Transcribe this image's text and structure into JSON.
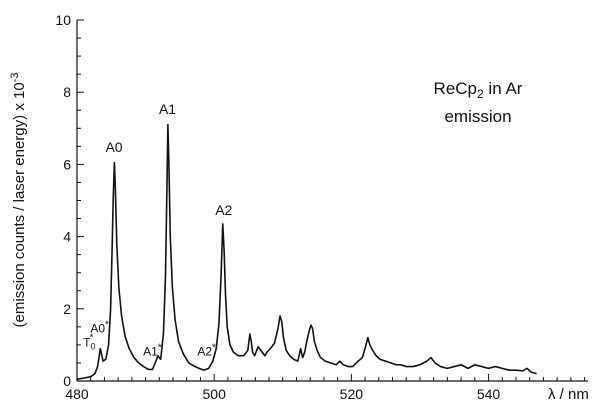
{
  "chart_data": {
    "type": "line",
    "title": "",
    "annotation": [
      "ReCp2 in Ar",
      "emission"
    ],
    "xlabel": "λ / nm",
    "ylabel": "(emission counts / laser energy) x 10",
    "ylabel_exponent": "-3",
    "xlim": [
      480,
      548
    ],
    "ylim": [
      0,
      10
    ],
    "x_ticks": [
      480,
      500,
      520,
      540
    ],
    "x_tick_labels": [
      "480",
      "500",
      "520",
      "540"
    ],
    "y_ticks": [
      0,
      2,
      4,
      6,
      8,
      10
    ],
    "y_tick_labels": [
      "0",
      "2",
      "4",
      "6",
      "8",
      "10"
    ],
    "grid": false,
    "peak_labels": [
      {
        "text": "A0",
        "x": 485.4,
        "y": 6.35
      },
      {
        "text": "A1",
        "x": 493.2,
        "y": 7.4
      },
      {
        "text": "A2",
        "x": 501.4,
        "y": 4.6
      },
      {
        "text": "A0*",
        "x": 483.3,
        "y": 1.35
      },
      {
        "text": "A1*",
        "x": 491.0,
        "y": 0.7
      },
      {
        "text": "A2*",
        "x": 498.9,
        "y": 0.7
      },
      {
        "text": "T0*",
        "x": 481.8,
        "y": 0.95
      }
    ],
    "series": [
      {
        "x": [
          480.0,
          481.0,
          482.0,
          482.6,
          483.0,
          483.4,
          483.8,
          484.2,
          484.6,
          484.9,
          485.1,
          485.3,
          485.45,
          485.6,
          485.8,
          486.1,
          486.5,
          487.0,
          487.6,
          488.3,
          489.0,
          489.7,
          490.4,
          491.0,
          491.4,
          491.8,
          492.2,
          492.6,
          492.9,
          493.1,
          493.25,
          493.4,
          493.6,
          493.9,
          494.3,
          494.8,
          495.5,
          496.3,
          497.0,
          497.8,
          498.5,
          499.2,
          499.8,
          500.3,
          500.7,
          501.0,
          501.25,
          501.45,
          501.65,
          501.9,
          502.3,
          502.8,
          503.5,
          504.3,
          504.9,
          505.2,
          505.4,
          505.6,
          505.9,
          506.4,
          507.0,
          507.4,
          507.7,
          508.2,
          508.8,
          509.3,
          509.6,
          509.85,
          510.1,
          510.5,
          511.0,
          511.6,
          512.2,
          512.6,
          512.9,
          513.2,
          513.5,
          513.8,
          514.1,
          514.35,
          514.6,
          515.0,
          515.5,
          516.2,
          517.0,
          517.8,
          518.3,
          518.8,
          519.5,
          520.2,
          521.0,
          521.6,
          522.0,
          522.4,
          522.7,
          523.1,
          523.6,
          524.2,
          525.0,
          525.8,
          526.5,
          527.2,
          528.0,
          529.0,
          530.0,
          531.0,
          531.6,
          532.2,
          533.0,
          534.0,
          535.0,
          536.0,
          537.0,
          538.0,
          539.0,
          540.0,
          541.0,
          542.0,
          543.0,
          544.0,
          545.0,
          545.6,
          546.2,
          547.0
        ],
        "y": [
          0.05,
          0.08,
          0.12,
          0.2,
          0.4,
          0.9,
          0.55,
          0.6,
          1.0,
          2.0,
          3.5,
          5.2,
          6.05,
          5.3,
          3.8,
          2.6,
          1.8,
          1.25,
          0.9,
          0.65,
          0.5,
          0.4,
          0.32,
          0.32,
          0.5,
          0.7,
          0.6,
          1.3,
          2.9,
          5.2,
          7.1,
          6.0,
          4.0,
          2.6,
          1.7,
          1.1,
          0.75,
          0.5,
          0.42,
          0.35,
          0.3,
          0.35,
          0.55,
          0.9,
          1.6,
          2.9,
          4.35,
          3.6,
          2.4,
          1.5,
          1.0,
          0.8,
          0.7,
          0.7,
          0.85,
          1.3,
          1.1,
          0.8,
          0.7,
          0.95,
          0.8,
          0.7,
          0.8,
          0.9,
          1.05,
          1.45,
          1.8,
          1.65,
          1.2,
          0.85,
          0.7,
          0.6,
          0.55,
          0.9,
          0.65,
          0.8,
          1.1,
          1.35,
          1.55,
          1.45,
          1.1,
          0.85,
          0.65,
          0.55,
          0.5,
          0.45,
          0.55,
          0.45,
          0.4,
          0.4,
          0.55,
          0.65,
          0.9,
          1.2,
          1.0,
          0.85,
          0.7,
          0.6,
          0.55,
          0.5,
          0.45,
          0.45,
          0.4,
          0.4,
          0.45,
          0.55,
          0.65,
          0.5,
          0.4,
          0.35,
          0.4,
          0.45,
          0.35,
          0.45,
          0.4,
          0.35,
          0.4,
          0.35,
          0.3,
          0.3,
          0.28,
          0.35,
          0.25,
          0.2
        ]
      }
    ]
  }
}
